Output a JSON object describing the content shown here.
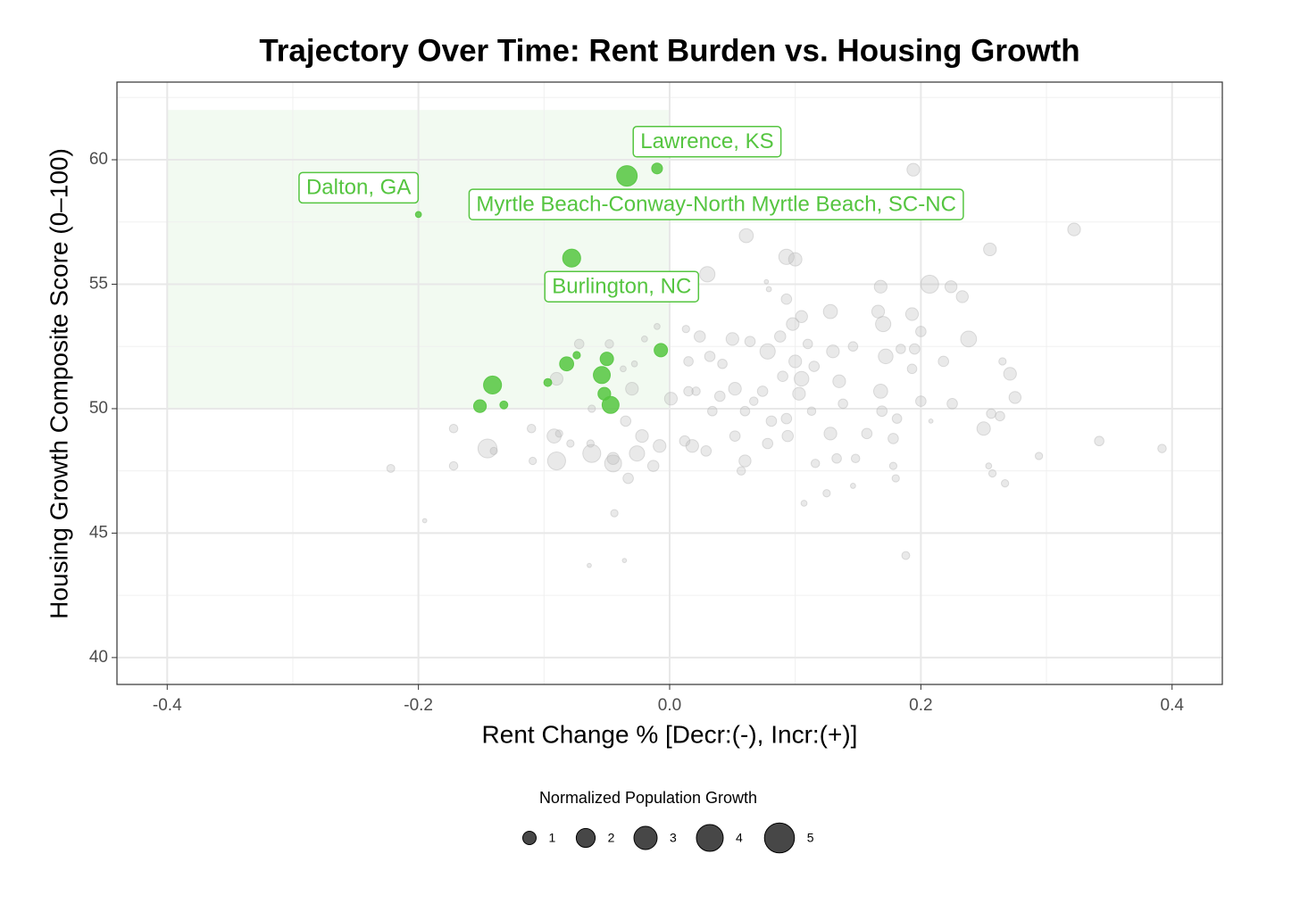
{
  "chart_data": {
    "type": "scatter",
    "title": "Trajectory Over Time: Rent Burden vs. Housing Growth",
    "x_label": "Rent Change % [Decr:(-), Incr:(+)]",
    "y_label": "Housing Growth Composite Score (0–100)",
    "xlim": [
      -0.44,
      0.44
    ],
    "ylim": [
      38.92,
      63.12
    ],
    "xticks": [
      -0.4,
      -0.2,
      {
        "value": 0,
        "label": "0.0"
      },
      0.2,
      0.4
    ],
    "yticks": [
      40,
      45,
      50,
      55,
      60
    ],
    "xminor": [
      -0.3,
      -0.1,
      0.1,
      0.3
    ],
    "yminor": [
      42.5,
      47.5,
      52.5,
      57.5,
      62.5
    ],
    "grid": true,
    "highlight_region": {
      "xlim": [
        -0.4,
        0
      ],
      "ylim": [
        50,
        62
      ],
      "color": "#f0f9ee"
    },
    "size_legend": {
      "title": "Normalized Population Growth",
      "values": [
        1,
        2,
        3,
        4,
        5
      ],
      "color": "#333333"
    },
    "series": [
      {
        "color": "#b5b5b5",
        "x": [
          0.194,
          0.322,
          0.061,
          0.255,
          0.093,
          0.1,
          0.03,
          0.207,
          0.168,
          0.224,
          0.233,
          0.093,
          0.079,
          0.128,
          0.166,
          0.193,
          0.105,
          0.17,
          0.098,
          0.2,
          0.238,
          0.05,
          0.013,
          0.024,
          0.088,
          0.064,
          0.11,
          0.146,
          0.184,
          0.13,
          0.078,
          0.195,
          0.032,
          0.042,
          0.015,
          0.1,
          0.115,
          0.172,
          0.218,
          0.193,
          0.271,
          0.265,
          0.105,
          0.135,
          0.168,
          0.052,
          0.074,
          0.067,
          0.103,
          0.04,
          0.138,
          0.2,
          0.225,
          0.275,
          0.256,
          0.169,
          0.181,
          0.113,
          0.093,
          0.081,
          0.06,
          0.034,
          0.001,
          0.015,
          -0.03,
          -0.035,
          -0.022,
          -0.008,
          0.018,
          0.052,
          0.078,
          0.094,
          0.128,
          0.157,
          0.178,
          0.25,
          0.263,
          0.342,
          0.392,
          0.294,
          0.254,
          0.257,
          0.267,
          0.18,
          0.178,
          0.116,
          0.133,
          0.148,
          0.06,
          0.057,
          0.029,
          0.012,
          -0.013,
          -0.033,
          -0.045,
          -0.045,
          -0.062,
          -0.09,
          -0.092,
          -0.145,
          -0.14,
          -0.172,
          -0.172,
          -0.11,
          -0.109,
          -0.079,
          -0.063,
          -0.088,
          -0.044,
          -0.064,
          -0.036,
          -0.195,
          -0.222,
          0.188,
          0.146,
          0.107,
          0.125,
          -0.09,
          -0.072,
          -0.048,
          -0.037,
          -0.028,
          -0.062,
          -0.02,
          -0.01,
          0.077,
          0.208,
          0.021,
          0.09,
          -0.026
        ],
        "y": [
          59.6,
          57.2,
          56.95,
          56.4,
          56.1,
          56.0,
          55.4,
          55.0,
          54.9,
          54.9,
          54.5,
          54.4,
          54.8,
          53.9,
          53.9,
          53.8,
          53.7,
          53.4,
          53.4,
          53.1,
          52.8,
          52.8,
          53.2,
          52.9,
          52.9,
          52.7,
          52.6,
          52.5,
          52.4,
          52.3,
          52.3,
          52.4,
          52.1,
          51.8,
          51.9,
          51.9,
          51.7,
          52.1,
          51.9,
          51.6,
          51.4,
          51.9,
          51.2,
          51.1,
          50.7,
          50.8,
          50.7,
          50.3,
          50.6,
          50.5,
          50.2,
          50.3,
          50.2,
          50.45,
          49.8,
          49.9,
          49.6,
          49.9,
          49.6,
          49.5,
          49.9,
          49.9,
          50.4,
          50.7,
          50.8,
          49.5,
          48.9,
          48.5,
          48.5,
          48.9,
          48.6,
          48.9,
          49.0,
          49.0,
          48.8,
          49.2,
          49.7,
          48.7,
          48.4,
          48.1,
          47.7,
          47.4,
          47.0,
          47.2,
          47.7,
          47.8,
          48.0,
          48.0,
          47.9,
          47.5,
          48.3,
          48.7,
          47.7,
          47.2,
          48.0,
          47.8,
          48.2,
          47.9,
          48.9,
          48.4,
          48.3,
          49.2,
          47.7,
          49.2,
          47.9,
          48.6,
          48.6,
          49.0,
          45.8,
          43.7,
          43.9,
          45.5,
          47.6,
          44.1,
          46.9,
          46.2,
          46.6,
          51.2,
          52.6,
          52.6,
          51.6,
          51.8,
          50.0,
          52.8,
          53.3,
          55.1,
          49.5,
          50.7,
          51.3,
          48.2
        ],
        "sizes": [
          0.9,
          0.9,
          1.1,
          0.9,
          1.3,
          1.0,
          1.3,
          1.8,
          0.9,
          0.8,
          0.8,
          0.6,
          0.15,
          1.1,
          0.9,
          0.9,
          0.8,
          1.3,
          0.9,
          0.6,
          1.4,
          0.9,
          0.3,
          0.7,
          0.7,
          0.6,
          0.5,
          0.5,
          0.5,
          0.9,
          1.3,
          0.6,
          0.6,
          0.5,
          0.5,
          0.9,
          0.6,
          1.2,
          0.6,
          0.5,
          0.9,
          0.3,
          1.2,
          0.9,
          1.1,
          0.9,
          0.6,
          0.4,
          0.9,
          0.6,
          0.5,
          0.6,
          0.6,
          0.8,
          0.5,
          0.6,
          0.5,
          0.4,
          0.6,
          0.6,
          0.5,
          0.5,
          0.9,
          0.5,
          0.9,
          0.6,
          0.9,
          0.9,
          0.9,
          0.6,
          0.6,
          0.7,
          0.9,
          0.6,
          0.6,
          1.0,
          0.5,
          0.5,
          0.4,
          0.3,
          0.2,
          0.3,
          0.3,
          0.3,
          0.3,
          0.4,
          0.5,
          0.4,
          0.8,
          0.4,
          0.6,
          0.6,
          0.7,
          0.6,
          0.8,
          1.6,
          1.8,
          1.8,
          1.1,
          2.0,
          0.3,
          0.4,
          0.4,
          0.4,
          0.3,
          0.3,
          0.3,
          0.3,
          0.3,
          0.1,
          0.1,
          0.1,
          0.35,
          0.35,
          0.15,
          0.2,
          0.3,
          0.9,
          0.5,
          0.4,
          0.2,
          0.2,
          0.3,
          0.2,
          0.2,
          0.1,
          0.1,
          0.4,
          0.6,
          1.3
        ]
      },
      {
        "color": "#55c540",
        "x": [
          -0.01,
          -0.034,
          -0.2,
          -0.078,
          -0.141,
          -0.151,
          -0.132,
          -0.097,
          -0.082,
          -0.074,
          -0.054,
          -0.05,
          -0.052,
          -0.047,
          -0.007
        ],
        "y": [
          59.65,
          59.35,
          57.8,
          56.05,
          50.95,
          50.1,
          50.15,
          51.05,
          51.8,
          52.15,
          51.35,
          52.0,
          50.6,
          50.15,
          52.35
        ],
        "sizes": [
          0.65,
          2.35,
          0.2,
          1.8,
          1.8,
          0.9,
          0.35,
          0.35,
          1.1,
          0.3,
          1.6,
          1.0,
          0.9,
          1.6,
          1.0
        ],
        "labels": [
          "Lawrence, KS",
          "Myrtle Beach-Conway-North Myrtle Beach, SC-NC",
          "Dalton, GA",
          "Burlington, NC",
          null,
          null,
          null,
          null,
          null,
          null,
          null,
          null,
          null,
          null,
          null
        ]
      }
    ]
  }
}
